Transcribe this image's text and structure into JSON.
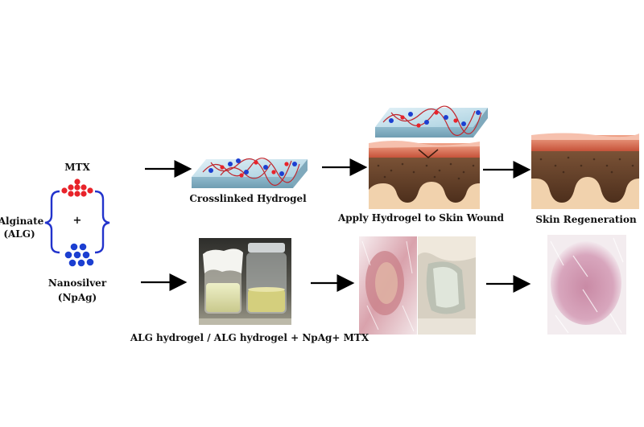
{
  "labels": {
    "mtx": "MTX",
    "plus": "+",
    "alginate": "Alginate",
    "alginate_abbr": "(ALG)",
    "nanosilver": "Nanosilver",
    "nanosilver_abbr": "(NpAg)",
    "crosslinked_hydrogel": "Crosslinked Hydrogel",
    "apply_hydrogel": "Apply Hydrogel to Skin Wound",
    "skin_regeneration": "Skin Regeneration",
    "vials_caption": "ALG hydrogel / ALG hydrogel + NpAg+ MTX"
  },
  "colors": {
    "mtx_dots": "#e8232a",
    "npag_dots": "#1c3fd1",
    "brace": "#2233cc",
    "hydrogel_slab": "#b9dbe8",
    "polymer_chain": "#c0262d",
    "skin_epidermis": "#d9745a",
    "skin_dermis": "#5b3a24",
    "skin_subcutis": "#f1d2ad"
  }
}
